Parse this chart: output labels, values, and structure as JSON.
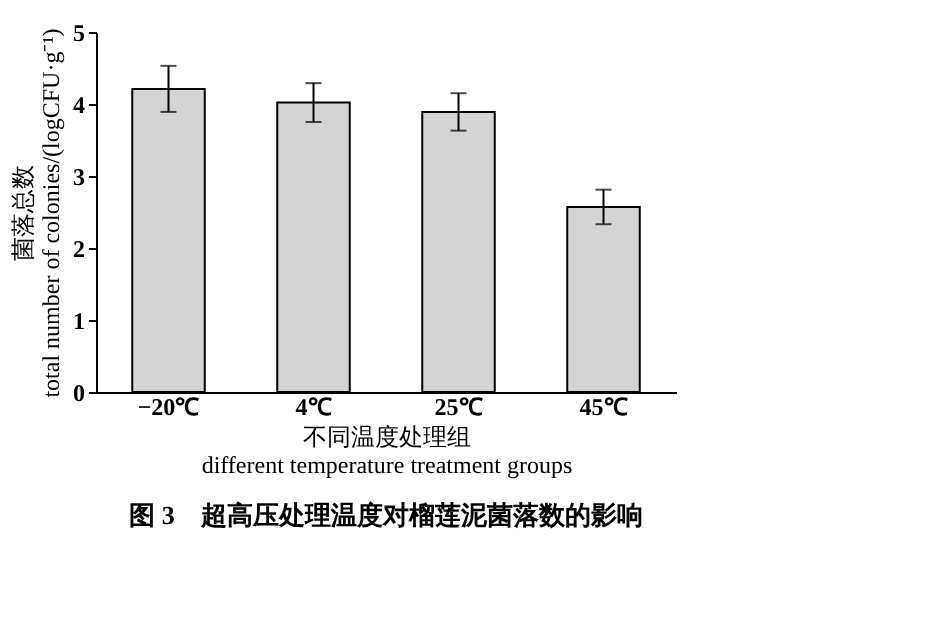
{
  "chart_data": {
    "type": "bar",
    "title": "图 3　超高压处理温度对榴莲泥菌落数的影响",
    "xlabel": "不同温度处理组\ndifferent temperature treatment groups",
    "ylabel": "菌落总数\ntotal number of colonies/(logCFU·g⁻¹)",
    "categories": [
      "−20℃",
      "4℃",
      "25℃",
      "45℃"
    ],
    "values": [
      4.21,
      4.02,
      3.89,
      2.57
    ],
    "errors": [
      0.32,
      0.27,
      0.26,
      0.24
    ],
    "color": "#d4d4d4",
    "ylim": [
      0,
      5
    ],
    "yticks": [
      0,
      1,
      2,
      3,
      4,
      5
    ],
    "grid": false
  }
}
